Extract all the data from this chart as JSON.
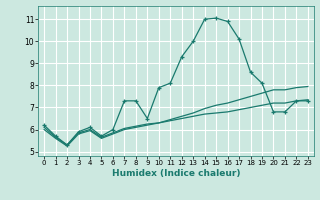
{
  "xlabel": "Humidex (Indice chaleur)",
  "bg_color": "#cce8e0",
  "line_color": "#1a7a6e",
  "grid_color": "#ffffff",
  "xlim": [
    -0.5,
    23.5
  ],
  "ylim": [
    4.8,
    11.6
  ],
  "yticks": [
    5,
    6,
    7,
    8,
    9,
    10,
    11
  ],
  "xticks": [
    0,
    1,
    2,
    3,
    4,
    5,
    6,
    7,
    8,
    9,
    10,
    11,
    12,
    13,
    14,
    15,
    16,
    17,
    18,
    19,
    20,
    21,
    22,
    23
  ],
  "series1_x": [
    0,
    1,
    2,
    3,
    4,
    5,
    6,
    7,
    8,
    9,
    10,
    11,
    12,
    13,
    14,
    15,
    16,
    17,
    18,
    19,
    20,
    21,
    22,
    23
  ],
  "series1_y": [
    6.2,
    5.7,
    5.3,
    5.9,
    6.1,
    5.7,
    6.0,
    7.3,
    7.3,
    6.5,
    7.9,
    8.1,
    9.3,
    10.0,
    11.0,
    11.05,
    10.9,
    10.1,
    8.6,
    8.1,
    6.8,
    6.8,
    7.3,
    7.3
  ],
  "series2_x": [
    0,
    1,
    2,
    3,
    4,
    5,
    6,
    7,
    8,
    9,
    10,
    11,
    12,
    13,
    14,
    15,
    16,
    17,
    18,
    19,
    20,
    21,
    22,
    23
  ],
  "series2_y": [
    6.1,
    5.65,
    5.3,
    5.85,
    6.0,
    5.65,
    5.85,
    6.05,
    6.15,
    6.25,
    6.3,
    6.4,
    6.5,
    6.6,
    6.7,
    6.75,
    6.8,
    6.9,
    7.0,
    7.1,
    7.2,
    7.2,
    7.3,
    7.35
  ],
  "series3_x": [
    0,
    1,
    2,
    3,
    4,
    5,
    6,
    7,
    8,
    9,
    10,
    11,
    12,
    13,
    14,
    15,
    16,
    17,
    18,
    19,
    20,
    21,
    22,
    23
  ],
  "series3_y": [
    6.0,
    5.6,
    5.25,
    5.8,
    5.95,
    5.6,
    5.8,
    6.0,
    6.1,
    6.2,
    6.3,
    6.45,
    6.6,
    6.75,
    6.95,
    7.1,
    7.2,
    7.35,
    7.5,
    7.65,
    7.8,
    7.8,
    7.9,
    7.95
  ]
}
